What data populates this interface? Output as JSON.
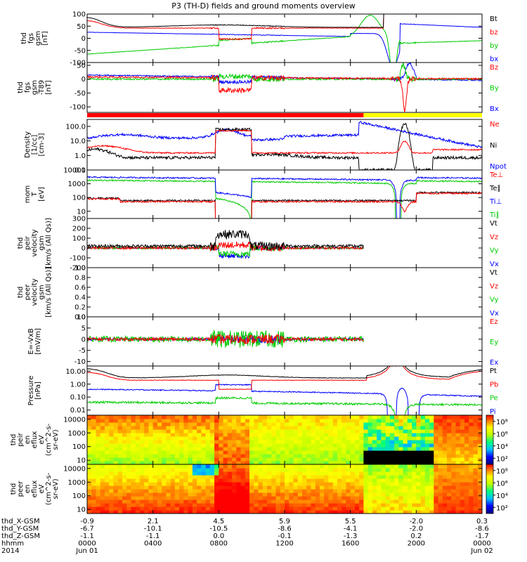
{
  "title": "P3 (TH-D) fields and ground moments overview",
  "colors": {
    "black": "#000000",
    "red": "#ff0000",
    "green": "#00cc00",
    "blue": "#0000ff",
    "orbit_red": "#ff0000",
    "orbit_yellow": "#ffff00"
  },
  "chart_data": {
    "type": "line",
    "x_axis": {
      "rows": [
        {
          "label": "thd_X-GSM",
          "values": [
            "-0.9",
            "2.1",
            "4.5",
            "5.9",
            "5.5",
            "-2.0",
            "0.3"
          ]
        },
        {
          "label": "thd_Y-GSM",
          "values": [
            "-6.7",
            "-10.1",
            "-10.5",
            "-8.6",
            "-4.1",
            "-2.0",
            "-8.6"
          ]
        },
        {
          "label": "thd_Z-GSM",
          "values": [
            "-1.1",
            "-1.1",
            "0.0",
            "-0.1",
            "-1.3",
            "0.2",
            "-1.7"
          ]
        },
        {
          "label": "hhmm",
          "values": [
            "0000",
            "0400",
            "0800",
            "1200",
            "1600",
            "2000",
            "0000"
          ]
        },
        {
          "label": "2014",
          "values": [
            "Jun 01",
            "",
            "",
            "",
            "",
            "",
            "Jun 02"
          ]
        }
      ],
      "hours": [
        0,
        4,
        8,
        12,
        16,
        20,
        24
      ]
    },
    "panels": [
      {
        "id": "fgs",
        "ylabel": [
          "thd",
          "fgs",
          "gsm",
          "[nT]"
        ],
        "ylim": [
          -100,
          100
        ],
        "scale": "linear",
        "ticks": [
          "100",
          "50",
          "0",
          "-50",
          "-100"
        ],
        "tick_values": [
          100,
          50,
          0,
          -50,
          -100
        ],
        "legend": [
          {
            "name": "Bt",
            "color": "#000000"
          },
          {
            "name": "bz",
            "color": "#ff0000"
          },
          {
            "name": "by",
            "color": "#00cc00"
          },
          {
            "name": "bx",
            "color": "#0000ff"
          }
        ]
      },
      {
        "id": "fgs_dip",
        "ylabel": [
          "thd",
          "fgs",
          "gsm",
          "-T89",
          "[nT]"
        ],
        "ylim": [
          -120,
          60
        ],
        "scale": "linear",
        "ticks": [
          "50",
          "0",
          "-50",
          "-100"
        ],
        "tick_values": [
          50,
          0,
          -50,
          -100
        ],
        "legend": [
          {
            "name": "Bz",
            "color": "#ff0000"
          },
          {
            "name": "By",
            "color": "#00cc00"
          },
          {
            "name": "Bx",
            "color": "#0000ff"
          }
        ]
      },
      {
        "id": "density",
        "ylabel": [
          "Density",
          "[1/cc]",
          "[cm-3]"
        ],
        "ylim": [
          0.1,
          300
        ],
        "scale": "log",
        "ticks": [
          "100.0",
          "10.0",
          "1.0",
          "0.1"
        ],
        "tick_values": [
          100,
          10,
          1,
          0.1
        ],
        "legend": [
          {
            "name": "Ne",
            "color": "#ff0000"
          },
          {
            "name": "Ni",
            "color": "#000000"
          },
          {
            "name": "Npot",
            "color": "#0000ff"
          }
        ]
      },
      {
        "id": "temp",
        "ylabel": [
          "mom",
          "T",
          "[eV]"
        ],
        "ylim": [
          3,
          10000
        ],
        "scale": "log",
        "ticks": [
          "10000",
          "1000",
          "100",
          "10"
        ],
        "tick_values": [
          10000,
          1000,
          100,
          10
        ],
        "legend": [
          {
            "name": "Te⊥",
            "color": "#ff0000"
          },
          {
            "name": "Te∥",
            "color": "#000000"
          },
          {
            "name": "Ti⊥",
            "color": "#0000ff"
          },
          {
            "name": "Ti∥",
            "color": "#00cc00"
          }
        ]
      },
      {
        "id": "vi",
        "ylabel": [
          "thd",
          "peir",
          "velocity",
          "gsm",
          "[km/s (All Qs)]"
        ],
        "ylim": [
          -200,
          300
        ],
        "scale": "linear",
        "ticks": [
          "300",
          "200",
          "100",
          "0",
          "-100",
          "-200"
        ],
        "tick_values": [
          300,
          200,
          100,
          0,
          -100,
          -200
        ],
        "legend": [
          {
            "name": "Vt",
            "color": "#000000"
          },
          {
            "name": "Vz",
            "color": "#ff0000"
          },
          {
            "name": "Vy",
            "color": "#00cc00"
          },
          {
            "name": "Vx",
            "color": "#0000ff"
          }
        ]
      },
      {
        "id": "ve",
        "ylabel": [
          "thd",
          "peer",
          "velocity",
          "gsm",
          "[km/s (All Qs)]"
        ],
        "ylim": [
          0,
          1
        ],
        "scale": "linear",
        "ticks": [
          "1.0",
          "0.8",
          "0.6",
          "0.4",
          "0.2",
          "0.0"
        ],
        "tick_values": [
          1,
          0.8,
          0.6,
          0.4,
          0.2,
          0
        ],
        "legend": [
          {
            "name": "Vt",
            "color": "#000000"
          },
          {
            "name": "Vz",
            "color": "#ff0000"
          },
          {
            "name": "Vy",
            "color": "#00cc00"
          },
          {
            "name": "Vx",
            "color": "#0000ff"
          }
        ]
      },
      {
        "id": "efield",
        "ylabel": [
          "E=-VxB",
          "[mV/m]"
        ],
        "ylim": [
          -12,
          10
        ],
        "scale": "linear",
        "ticks": [
          "10",
          "5",
          "0",
          "-5",
          "-10"
        ],
        "tick_values": [
          10,
          5,
          0,
          -5,
          -10
        ],
        "legend": [
          {
            "name": "Ez",
            "color": "#ff0000"
          },
          {
            "name": "Ey",
            "color": "#00cc00"
          },
          {
            "name": "Ex",
            "color": "#0000ff"
          }
        ]
      },
      {
        "id": "pressure",
        "ylabel": [
          "Pressure",
          "[nPa]"
        ],
        "ylim": [
          0.004,
          25
        ],
        "scale": "log",
        "ticks": [
          "10.00",
          "1.00",
          "0.10",
          "0.01"
        ],
        "tick_values": [
          10,
          1,
          0.1,
          0.01
        ],
        "legend": [
          {
            "name": "Pt",
            "color": "#000000"
          },
          {
            "name": "Pb",
            "color": "#ff0000"
          },
          {
            "name": "Pe",
            "color": "#00cc00"
          },
          {
            "name": "Pi",
            "color": "#0000ff"
          }
        ]
      },
      {
        "id": "ion_spec",
        "ylabel": [
          "thd",
          "peir",
          "en",
          "eflux",
          "eV",
          "(cm^2-s-",
          "sr-eV)"
        ],
        "ylim": [
          5,
          20000
        ],
        "scale": "log",
        "ticks": [
          "10000",
          "1000",
          "100",
          "10"
        ],
        "tick_values": [
          10000,
          1000,
          100,
          10
        ],
        "legend": []
      },
      {
        "id": "elec_spec",
        "ylabel": [
          "thd",
          "peer",
          "en",
          "eflux",
          "eV",
          "(cm^2-s-",
          "sr-eV)"
        ],
        "ylim": [
          5,
          20000
        ],
        "scale": "log",
        "ticks": [
          "10000",
          "1000",
          "100",
          "10"
        ],
        "tick_values": [
          10000,
          1000,
          100,
          10
        ],
        "legend": []
      }
    ],
    "colorbars": [
      {
        "panel": "ion_spec",
        "labels": [
          "10⁸",
          "10⁶",
          "10⁴",
          "10²"
        ],
        "exponents": [
          8,
          6,
          4,
          2
        ],
        "range": [
          1,
          9
        ]
      },
      {
        "panel": "elec_spec",
        "labels": [
          "10⁸",
          "10⁶",
          "10⁴",
          "10²"
        ],
        "exponents": [
          8,
          6,
          4,
          2
        ],
        "range": [
          1,
          9
        ]
      }
    ],
    "orbit_bar": [
      {
        "from_hour": 0,
        "to_hour": 16.8,
        "color": "#ff0000"
      },
      {
        "from_hour": 16.8,
        "to_hour": 24,
        "color": "#ffff00"
      }
    ]
  }
}
